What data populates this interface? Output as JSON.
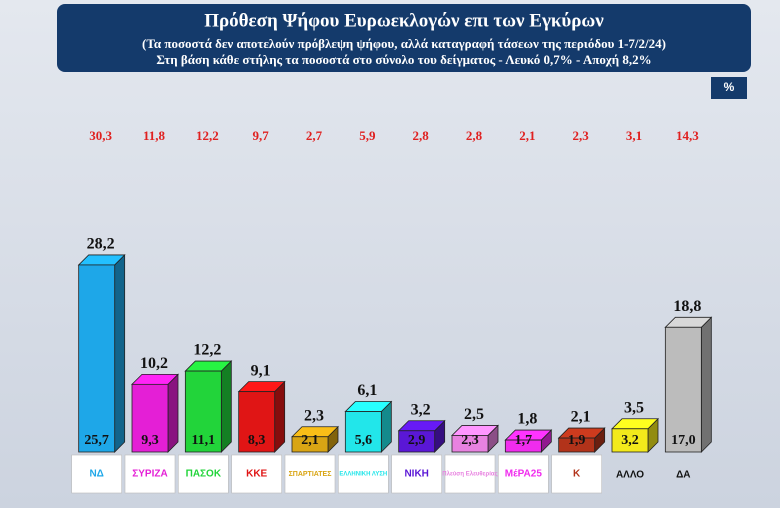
{
  "chart_data": {
    "type": "bar3d",
    "title": "Πρόθεση Ψήφου Ευρωεκλογών επι των Εγκύρων",
    "subtitle_lines": [
      "(Τα ποσοστά δεν αποτελούν πρόβλεψη ψήφου, αλλά καταγραφή τάσεων της περιόδου  1-7/2/24)",
      "Στη βάση κάθε στήλης τα ποσοστά στο σύνολο του δείγματος - Λευκό 0,7% - Αποχή 8,2%"
    ],
    "unit_badge": "%",
    "categories": [
      "ΝΔ",
      "ΣΥΡΙΖΑ",
      "ΠΑΣΟΚ",
      "ΚΚΕ",
      "ΣΠΑΡΤΙΑΤΕΣ",
      "ΕΛΛΗΝΙΚΗ ΛΥΣΗ",
      "ΝΙΚΗ",
      "Πλεύση Ελευθερίας",
      "ΜέΡΑ25",
      "Κ",
      "ΑΛΛΟ",
      "ΔΑ"
    ],
    "colors": [
      "#1ea7e8",
      "#e41fd6",
      "#22d43a",
      "#e01515",
      "#d9a514",
      "#22e6ea",
      "#5a17d6",
      "#e882e0",
      "#f02cee",
      "#b2331a",
      "#f3ea1b",
      "#bcbcbc"
    ],
    "ylim": [
      0,
      30
    ],
    "series": [
      {
        "values": [
          28.2,
          10.2,
          12.2,
          9.1,
          2.3,
          6.1,
          3.2,
          2.5,
          1.8,
          2.1,
          3.5,
          18.8
        ],
        "value_labels": [
          "28,2",
          "10,2",
          "12,2",
          "9,1",
          "2,3",
          "6,1",
          "3,2",
          "2,5",
          "1,8",
          "2,1",
          "3,5",
          "18,8"
        ]
      },
      {
        "values": [
          25.7,
          9.3,
          11.1,
          8.3,
          2.1,
          5.6,
          2.9,
          2.3,
          1.7,
          1.9,
          3.2,
          17.0
        ],
        "value_labels": [
          "25,7",
          "9,3",
          "11,1",
          "8,3",
          "2,1",
          "5,6",
          "2,9",
          "2,3",
          "1,7",
          "1,9",
          "3,2",
          "17,0"
        ]
      },
      {
        "values": [
          30.3,
          11.8,
          12.2,
          9.7,
          2.7,
          5.9,
          2.8,
          2.8,
          2.1,
          2.3,
          3.1,
          14.3
        ],
        "value_labels": [
          "30,3",
          "11,8",
          "12,2",
          "9,7",
          "2,7",
          "5,9",
          "2,8",
          "2,8",
          "2,1",
          "2,3",
          "3,1",
          "14,3"
        ],
        "color": "#e02020"
      }
    ]
  }
}
